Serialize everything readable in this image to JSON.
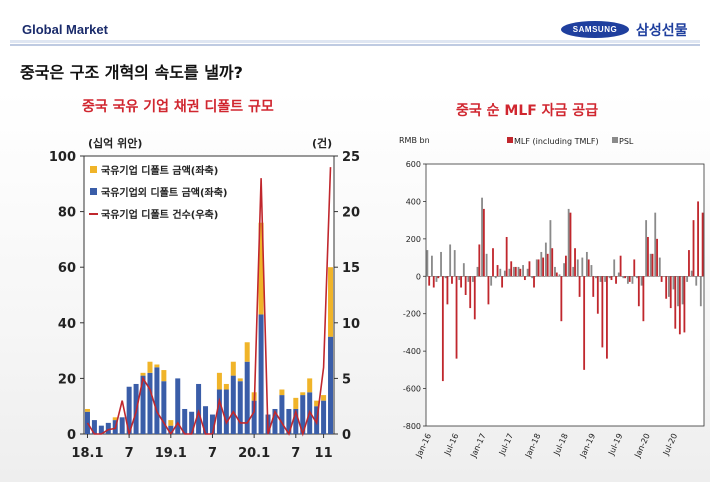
{
  "header": {
    "section_label": "Global Market",
    "logo_text": "SAMSUNG",
    "company_name": "삼성선물"
  },
  "slide_title": "중국은 구조 개혁의 속도를 낼까?",
  "colors": {
    "accent_blue": "#1f3f9e",
    "title_red": "#d0262f",
    "soe_bar": "#3a5da8",
    "non_soe_bar": "#f0b429",
    "count_line": "#c0272d",
    "mlf_bar": "#c0272d",
    "psl_bar": "#8a8a8a"
  },
  "chart_data": [
    {
      "type": "bar",
      "title": "중국 국유 기업 채권 디폴트 규모",
      "left_unit": "(십억 위안)",
      "right_unit": "(건)",
      "ylim": [
        0,
        100
      ],
      "y_ticks": [
        0,
        20,
        40,
        60,
        80,
        100
      ],
      "y2lim": [
        0,
        25
      ],
      "y2_ticks": [
        0,
        5,
        10,
        15,
        20,
        25
      ],
      "x_tick_labels": [
        {
          "index": 0,
          "label": "18.1"
        },
        {
          "index": 6,
          "label": "7"
        },
        {
          "index": 12,
          "label": "19.1"
        },
        {
          "index": 18,
          "label": "7"
        },
        {
          "index": 24,
          "label": "20.1"
        },
        {
          "index": 30,
          "label": "7"
        },
        {
          "index": 34,
          "label": "11"
        }
      ],
      "legend": [
        "국유기업 디폴트 금액(좌축)",
        "국유기업외 디폴트 금액(좌축)",
        "국유기업 디폴트 건수(우축)"
      ],
      "series": [
        {
          "name": "국유기업 디폴트 금액(좌축)",
          "kind": "stack-top",
          "values": [
            1,
            0,
            0,
            0,
            1,
            0,
            0,
            0,
            1,
            4,
            1,
            4,
            2,
            0,
            0,
            0,
            0,
            0,
            0,
            6,
            2,
            5,
            1,
            7,
            3,
            33,
            0,
            0,
            2,
            0,
            4,
            1,
            5,
            2,
            2,
            25
          ]
        },
        {
          "name": "국유기업외 디폴트 금액(좌축)",
          "kind": "stack-base",
          "values": [
            8,
            5,
            3,
            4,
            5,
            6,
            17,
            18,
            21,
            22,
            24,
            19,
            3,
            20,
            9,
            8,
            18,
            10,
            7,
            16,
            16,
            21,
            19,
            26,
            12,
            43,
            7,
            9,
            14,
            9,
            9,
            14,
            15,
            10,
            12,
            35
          ]
        },
        {
          "name": "국유기업 디폴트 건수(우축)",
          "kind": "line",
          "values": [
            1,
            0,
            0,
            0.4,
            0.5,
            3,
            0,
            2,
            5,
            4,
            2,
            1,
            0,
            1,
            0,
            0,
            2,
            0,
            0,
            3,
            1,
            2,
            1,
            1,
            2,
            23,
            0,
            2,
            1,
            0,
            2,
            0,
            2,
            1,
            6,
            24
          ]
        }
      ]
    },
    {
      "type": "bar",
      "title": "중국 순 MLF 자금 공급",
      "ylabel": "RMB bn",
      "ylim": [
        -800,
        600
      ],
      "y_ticks": [
        600,
        400,
        200,
        0,
        -200,
        -400,
        -600,
        -800
      ],
      "x_tick_labels": [
        {
          "index": 0,
          "label": "Jan-16"
        },
        {
          "index": 6,
          "label": "Jul-16"
        },
        {
          "index": 12,
          "label": "Jan-17"
        },
        {
          "index": 18,
          "label": "Jul-17"
        },
        {
          "index": 24,
          "label": "Jan-18"
        },
        {
          "index": 30,
          "label": "Jul-18"
        },
        {
          "index": 36,
          "label": "Jan-19"
        },
        {
          "index": 42,
          "label": "Jul-19"
        },
        {
          "index": 48,
          "label": "Jan-20"
        },
        {
          "index": 54,
          "label": "Jul-20"
        }
      ],
      "series": [
        {
          "name": "MLF (including TMLF)",
          "values": [
            -50,
            -60,
            -10,
            -560,
            -150,
            -40,
            -440,
            -60,
            -100,
            -170,
            -230,
            170,
            360,
            -150,
            150,
            60,
            -60,
            210,
            80,
            50,
            40,
            -20,
            80,
            -60,
            90,
            100,
            120,
            150,
            20,
            -240,
            110,
            340,
            150,
            -110,
            -500,
            90,
            -110,
            -200,
            -380,
            -440,
            -20,
            -40,
            110,
            -10,
            -30,
            90,
            -160,
            -240,
            210,
            120,
            200,
            -30,
            -120,
            -170,
            -280,
            -310,
            -300,
            140,
            300,
            400,
            340
          ],
          "psl_note": null
        },
        {
          "name": "PSL",
          "values": [
            140,
            110,
            -30,
            130,
            -10,
            170,
            140,
            -20,
            70,
            -30,
            -30,
            50,
            420,
            120,
            -50,
            -10,
            40,
            30,
            40,
            50,
            50,
            60,
            40,
            -10,
            90,
            130,
            180,
            300,
            50,
            10,
            70,
            360,
            50,
            90,
            100,
            130,
            60,
            -10,
            -30,
            -30,
            -10,
            90,
            20,
            -10,
            -40,
            -40,
            -10,
            -50,
            300,
            120,
            340,
            100,
            0,
            -110,
            -70,
            -160,
            -150,
            -30,
            30,
            -50,
            -160
          ]
        }
      ]
    }
  ]
}
